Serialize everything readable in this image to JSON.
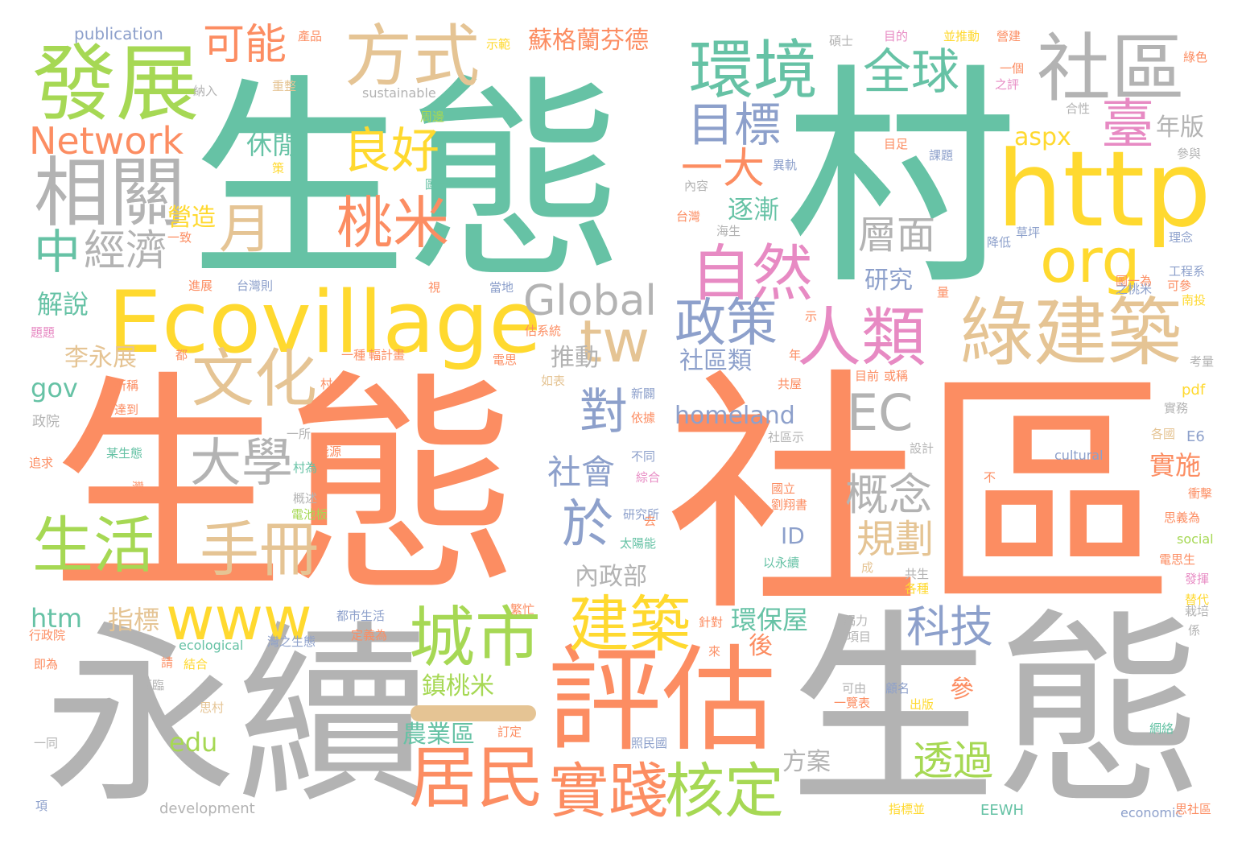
{
  "colors": {
    "teal": "#66c2a5",
    "orange": "#fc8d62",
    "gray": "#b3b3b3",
    "yellow": "#ffd92f",
    "tan": "#e5c494",
    "green": "#a6d854",
    "blue": "#8da0cb",
    "pink": "#e78ac3",
    "background": "#ffffff"
  },
  "words": [
    {
      "text": "生態",
      "color": "#66c2a5"
    },
    {
      "text": "村",
      "color": "#66c2a5"
    },
    {
      "text": "生態",
      "color": "#fc8d62"
    },
    {
      "text": "社區",
      "color": "#fc8d62"
    },
    {
      "text": "永續",
      "color": "#b3b3b3"
    },
    {
      "text": "生態",
      "color": "#b3b3b3"
    },
    {
      "text": "Ecovillage",
      "color": "#ffd92f"
    },
    {
      "text": "http",
      "color": "#ffd92f"
    },
    {
      "text": "評估",
      "color": "#fc8d62"
    },
    {
      "text": "社區",
      "color": "#b3b3b3"
    },
    {
      "text": "發展",
      "color": "#a6d854"
    },
    {
      "text": "綠建築",
      "color": "#e5c494"
    },
    {
      "text": "相關",
      "color": "#b3b3b3"
    },
    {
      "text": "方式",
      "color": "#e5c494"
    },
    {
      "text": "環境",
      "color": "#66c2a5"
    },
    {
      "text": "城市",
      "color": "#a6d854"
    },
    {
      "text": "居民",
      "color": "#fc8d62"
    },
    {
      "text": "實踐",
      "color": "#fc8d62"
    },
    {
      "text": "核定",
      "color": "#a6d854"
    },
    {
      "text": "建築",
      "color": "#ffd92f"
    },
    {
      "text": "人類",
      "color": "#e78ac3"
    },
    {
      "text": "自然",
      "color": "#e78ac3"
    },
    {
      "text": "org",
      "color": "#ffd92f"
    },
    {
      "text": "tw",
      "color": "#e5c494"
    },
    {
      "text": "www",
      "color": "#ffd92f"
    },
    {
      "text": "政策",
      "color": "#8da0cb"
    },
    {
      "text": "文化",
      "color": "#e5c494"
    },
    {
      "text": "生活",
      "color": "#a6d854"
    },
    {
      "text": "手冊",
      "color": "#e5c494"
    },
    {
      "text": "大學",
      "color": "#b3b3b3"
    },
    {
      "text": "桃米",
      "color": "#fc8d62"
    },
    {
      "text": "良好",
      "color": "#ffd92f"
    },
    {
      "text": "全球",
      "color": "#66c2a5"
    },
    {
      "text": "Network",
      "color": "#fc8d62"
    },
    {
      "text": "Global",
      "color": "#b3b3b3"
    },
    {
      "text": "EC",
      "color": "#b3b3b3"
    },
    {
      "text": "科技",
      "color": "#8da0cb"
    },
    {
      "text": "概念",
      "color": "#b3b3b3"
    },
    {
      "text": "目標",
      "color": "#8da0cb"
    },
    {
      "text": "一大",
      "color": "#fc8d62"
    },
    {
      "text": "臺",
      "color": "#e78ac3"
    },
    {
      "text": "月",
      "color": "#e5c494"
    },
    {
      "text": "可能",
      "color": "#fc8d62"
    },
    {
      "text": "中",
      "color": "#66c2a5"
    },
    {
      "text": "經濟",
      "color": "#b3b3b3"
    },
    {
      "text": "對",
      "color": "#8da0cb"
    },
    {
      "text": "於",
      "color": "#8da0cb"
    },
    {
      "text": "社會",
      "color": "#8da0cb"
    },
    {
      "text": "規劃",
      "color": "#e5c494"
    },
    {
      "text": "透過",
      "color": "#a6d854"
    },
    {
      "text": "層面",
      "color": "#b3b3b3"
    },
    {
      "text": "蘇格蘭芬德",
      "color": "#fc8d62"
    },
    {
      "text": "aspx",
      "color": "#ffd92f"
    },
    {
      "text": "年版",
      "color": "#b3b3b3"
    },
    {
      "text": "研究",
      "color": "#8da0cb"
    },
    {
      "text": "逐漸",
      "color": "#66c2a5"
    },
    {
      "text": "休閒",
      "color": "#66c2a5"
    },
    {
      "text": "營造",
      "color": "#ffd92f"
    },
    {
      "text": "推動",
      "color": "#b3b3b3"
    },
    {
      "text": "社區類",
      "color": "#8da0cb"
    },
    {
      "text": "homeland",
      "color": "#8da0cb"
    },
    {
      "text": "解說",
      "color": "#66c2a5"
    },
    {
      "text": "李永展",
      "color": "#e5c494"
    },
    {
      "text": "gov",
      "color": "#66c2a5"
    },
    {
      "text": "指標",
      "color": "#e5c494"
    },
    {
      "text": "htm",
      "color": "#66c2a5"
    },
    {
      "text": "環保屋",
      "color": "#66c2a5"
    },
    {
      "text": "內政部",
      "color": "#b3b3b3"
    },
    {
      "text": "ID",
      "color": "#8da0cb"
    },
    {
      "text": "實施",
      "color": "#fc8d62"
    },
    {
      "text": "後",
      "color": "#fc8d62"
    },
    {
      "text": "鎮桃米",
      "color": "#a6d854"
    },
    {
      "text": "農業區",
      "color": "#66c2a5"
    },
    {
      "text": "方案",
      "color": "#b3b3b3"
    },
    {
      "text": "參",
      "color": "#fc8d62"
    },
    {
      "text": "edu",
      "color": "#a6d854"
    },
    {
      "text": "publication",
      "color": "#8da0cb"
    },
    {
      "text": "sustainable",
      "color": "#b3b3b3"
    },
    {
      "text": "development",
      "color": "#b3b3b3"
    },
    {
      "text": "ecological",
      "color": "#66c2a5"
    },
    {
      "text": "cultural",
      "color": "#8da0cb"
    },
    {
      "text": "economic",
      "color": "#8da0cb"
    },
    {
      "text": "social",
      "color": "#a6d854"
    },
    {
      "text": "pdf",
      "color": "#ffd92f"
    },
    {
      "text": "E6",
      "color": "#8da0cb"
    },
    {
      "text": "EEWH",
      "color": "#66c2a5"
    },
    {
      "text": "產品",
      "color": "#fc8d62"
    },
    {
      "text": "重整",
      "color": "#e5c494"
    },
    {
      "text": "納入",
      "color": "#b3b3b3"
    },
    {
      "text": "示範",
      "color": "#ffd92f"
    },
    {
      "text": "周邊",
      "color": "#a6d854"
    },
    {
      "text": "碩士",
      "color": "#b3b3b3"
    },
    {
      "text": "目的",
      "color": "#e78ac3"
    },
    {
      "text": "並推動",
      "color": "#ffd92f"
    },
    {
      "text": "營建",
      "color": "#fc8d62"
    },
    {
      "text": "一個",
      "color": "#fc8d62"
    },
    {
      "text": "之評",
      "color": "#e78ac3"
    },
    {
      "text": "綠色",
      "color": "#fc8d62"
    },
    {
      "text": "合性",
      "color": "#b3b3b3"
    },
    {
      "text": "策",
      "color": "#ffd92f"
    },
    {
      "text": "圖一",
      "color": "#66c2a5"
    },
    {
      "text": "內容",
      "color": "#b3b3b3"
    },
    {
      "text": "台灣",
      "color": "#fc8d62"
    },
    {
      "text": "目足",
      "color": "#fc8d62"
    },
    {
      "text": "課題",
      "color": "#8da0cb"
    },
    {
      "text": "參與",
      "color": "#b3b3b3"
    },
    {
      "text": "異軌",
      "color": "#8da0cb"
    },
    {
      "text": "一致",
      "color": "#fc8d62"
    },
    {
      "text": "進展",
      "color": "#fc8d62"
    },
    {
      "text": "台灣則",
      "color": "#8da0cb"
    },
    {
      "text": "一種",
      "color": "#fc8d62"
    },
    {
      "text": "輻計畫",
      "color": "#fc8d62"
    },
    {
      "text": "政院",
      "color": "#b3b3b3"
    },
    {
      "text": "所稱",
      "color": "#fc8d62"
    },
    {
      "text": "達到",
      "color": "#fc8d62"
    },
    {
      "text": "追求",
      "color": "#fc8d62"
    },
    {
      "text": "某生態",
      "color": "#66c2a5"
    },
    {
      "text": "一所",
      "color": "#b3b3b3"
    },
    {
      "text": "能源",
      "color": "#fc8d62"
    },
    {
      "text": "村為",
      "color": "#66c2a5"
    },
    {
      "text": "概述",
      "color": "#b3b3b3"
    },
    {
      "text": "電池板",
      "color": "#a6d854"
    },
    {
      "text": "研究所",
      "color": "#8da0cb"
    },
    {
      "text": "太陽能",
      "color": "#66c2a5"
    },
    {
      "text": "以永續",
      "color": "#66c2a5"
    },
    {
      "text": "共生",
      "color": "#b3b3b3"
    },
    {
      "text": "各種",
      "color": "#ffd92f"
    },
    {
      "text": "都市生活",
      "color": "#8da0cb"
    },
    {
      "text": "定義為",
      "color": "#fc8d62"
    },
    {
      "text": "針對",
      "color": "#fc8d62"
    },
    {
      "text": "項目",
      "color": "#b3b3b3"
    },
    {
      "text": "行政院",
      "color": "#fc8d62"
    },
    {
      "text": "即為",
      "color": "#fc8d62"
    },
    {
      "text": "結合",
      "color": "#ffd92f"
    },
    {
      "text": "思村",
      "color": "#e5c494"
    },
    {
      "text": "可由",
      "color": "#b3b3b3"
    },
    {
      "text": "一覽表",
      "color": "#fc8d62"
    },
    {
      "text": "顧名",
      "color": "#8da0cb"
    },
    {
      "text": "出版",
      "color": "#ffd92f"
    },
    {
      "text": "網絡",
      "color": "#66c2a5"
    },
    {
      "text": "訂定",
      "color": "#fc8d62"
    },
    {
      "text": "照民國",
      "color": "#8da0cb"
    },
    {
      "text": "指標並",
      "color": "#ffd92f"
    },
    {
      "text": "思社區",
      "color": "#fc8d62"
    },
    {
      "text": "一同",
      "color": "#b3b3b3"
    },
    {
      "text": "項",
      "color": "#8da0cb"
    },
    {
      "text": "新闢",
      "color": "#8da0cb"
    },
    {
      "text": "依據",
      "color": "#fc8d62"
    },
    {
      "text": "不同",
      "color": "#8da0cb"
    },
    {
      "text": "綜合",
      "color": "#e78ac3"
    },
    {
      "text": "國立",
      "color": "#fc8d62"
    },
    {
      "text": "劉翔書",
      "color": "#fc8d62"
    },
    {
      "text": "設計",
      "color": "#b3b3b3"
    },
    {
      "text": "社區示",
      "color": "#b3b3b3"
    },
    {
      "text": "各國",
      "color": "#e5c494"
    },
    {
      "text": "實務",
      "color": "#b3b3b3"
    },
    {
      "text": "思義為",
      "color": "#fc8d62"
    },
    {
      "text": "衝擊",
      "color": "#fc8d62"
    },
    {
      "text": "電思生",
      "color": "#fc8d62"
    },
    {
      "text": "發揮",
      "color": "#e78ac3"
    },
    {
      "text": "替代",
      "color": "#ffd92f"
    },
    {
      "text": "共屋",
      "color": "#fc8d62"
    },
    {
      "text": "或稱",
      "color": "#fc8d62"
    },
    {
      "text": "目前",
      "color": "#fc8d62"
    },
    {
      "text": "年",
      "color": "#fc8d62"
    },
    {
      "text": "考量",
      "color": "#b3b3b3"
    },
    {
      "text": "理念",
      "color": "#8da0cb"
    },
    {
      "text": "工程系",
      "color": "#8da0cb"
    },
    {
      "text": "可參",
      "color": "#fc8d62"
    },
    {
      "text": "南投",
      "color": "#ffd92f"
    },
    {
      "text": "圖一為",
      "color": "#fc8d62"
    },
    {
      "text": "之桃米",
      "color": "#8da0cb"
    },
    {
      "text": "降低",
      "color": "#8da0cb"
    },
    {
      "text": "草坪",
      "color": "#8da0cb"
    },
    {
      "text": "繁忙",
      "color": "#fc8d62"
    },
    {
      "text": "竭力",
      "color": "#b3b3b3"
    },
    {
      "text": "灣之生態",
      "color": "#8da0cb"
    },
    {
      "text": "來",
      "color": "#fc8d62"
    },
    {
      "text": "當地",
      "color": "#8da0cb"
    },
    {
      "text": "估系統",
      "color": "#fc8d62"
    },
    {
      "text": "電思",
      "color": "#fc8d62"
    },
    {
      "text": "如表",
      "color": "#e5c494"
    },
    {
      "text": "去",
      "color": "#fc8d62"
    },
    {
      "text": "村",
      "color": "#fc8d62"
    },
    {
      "text": "都",
      "color": "#fc8d62"
    },
    {
      "text": "題題",
      "color": "#e78ac3"
    },
    {
      "text": "灣",
      "color": "#fc8d62"
    },
    {
      "text": "面臨",
      "color": "#b3b3b3"
    },
    {
      "text": "請",
      "color": "#fc8d62"
    },
    {
      "text": "成",
      "color": "#e5c494"
    },
    {
      "text": "視",
      "color": "#fc8d62"
    },
    {
      "text": "量",
      "color": "#fc8d62"
    },
    {
      "text": "示",
      "color": "#fc8d62"
    },
    {
      "text": "不",
      "color": "#fc8d62"
    },
    {
      "text": "海生",
      "color": "#b3b3b3"
    },
    {
      "text": "栽培",
      "color": "#b3b3b3"
    },
    {
      "text": "係",
      "color": "#b3b3b3"
    }
  ]
}
